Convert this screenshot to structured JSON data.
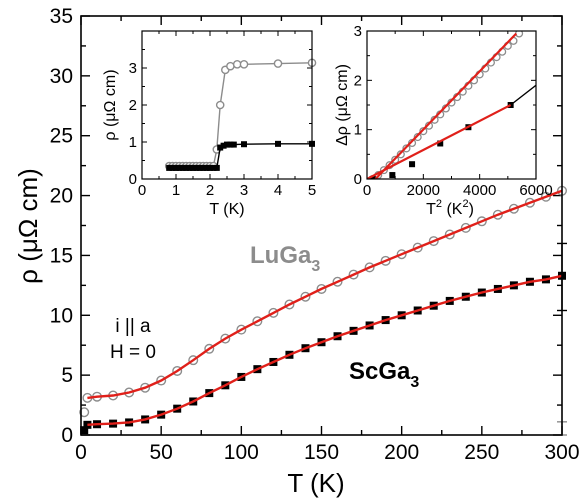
{
  "chart_data": [
    {
      "id": "main",
      "type": "scatter",
      "xlabel": "T (K)",
      "ylabel": "ρ (μΩ cm)",
      "xlim": [
        0,
        300
      ],
      "ylim": [
        0,
        35
      ],
      "xticks": [
        "0",
        "50",
        "100",
        "150",
        "200",
        "250",
        "300"
      ],
      "yticks": [
        "0",
        "5",
        "10",
        "15",
        "20",
        "25",
        "30",
        "35"
      ],
      "annotations": [
        "i || a",
        "H = 0"
      ],
      "series": [
        {
          "name": "LuGa3",
          "label_main": "LuGa",
          "label_sub": "3",
          "marker": "open-circle",
          "color": "#8c8c8c",
          "fit_color": "#e0201a",
          "x": [
            2,
            4,
            10,
            20,
            30,
            40,
            50,
            60,
            70,
            80,
            90,
            100,
            110,
            120,
            130,
            140,
            150,
            160,
            170,
            180,
            190,
            200,
            210,
            220,
            230,
            240,
            250,
            260,
            270,
            280,
            290,
            300
          ],
          "y": [
            1.9,
            3.1,
            3.2,
            3.3,
            3.55,
            3.95,
            4.55,
            5.35,
            6.25,
            7.2,
            8.05,
            8.8,
            9.5,
            10.2,
            10.9,
            11.55,
            12.2,
            12.8,
            13.4,
            14.0,
            14.55,
            15.1,
            15.65,
            16.2,
            16.75,
            17.3,
            17.85,
            18.4,
            18.9,
            19.4,
            19.9,
            20.4
          ],
          "error_bar": {
            "x": 300,
            "low": 0.0,
            "high": 1.1
          }
        },
        {
          "name": "ScGa3",
          "label_main": "ScGa",
          "label_sub": "3",
          "marker": "filled-square",
          "color": "#000000",
          "fit_color": "#e0201a",
          "x": [
            2,
            4,
            10,
            20,
            30,
            40,
            50,
            60,
            70,
            80,
            90,
            100,
            110,
            120,
            130,
            140,
            150,
            160,
            170,
            180,
            190,
            200,
            210,
            220,
            230,
            240,
            250,
            260,
            270,
            280,
            290,
            300
          ],
          "y": [
            0.4,
            0.85,
            0.9,
            0.95,
            1.05,
            1.3,
            1.7,
            2.2,
            2.8,
            3.5,
            4.15,
            4.85,
            5.5,
            6.1,
            6.7,
            7.25,
            7.75,
            8.25,
            8.7,
            9.15,
            9.6,
            10.0,
            10.4,
            10.8,
            11.2,
            11.55,
            11.9,
            12.2,
            12.5,
            12.8,
            13.0,
            13.3
          ],
          "error_bar": {
            "x": 300,
            "low": 10.4,
            "high": 16.0
          }
        }
      ]
    },
    {
      "id": "inset_left",
      "type": "line",
      "xlabel": "T (K)",
      "ylabel": "ρ (μΩ cm)",
      "xlim": [
        0,
        5
      ],
      "ylim": [
        0,
        4
      ],
      "xticks": [
        "0",
        "1",
        "2",
        "3",
        "4",
        "5"
      ],
      "yticks": [
        "0",
        "1",
        "2",
        "3"
      ],
      "series": [
        {
          "name": "LuGa3",
          "marker": "open-circle",
          "color": "#8c8c8c",
          "x": [
            0.8,
            0.9,
            1.0,
            1.1,
            1.2,
            1.3,
            1.4,
            1.5,
            1.6,
            1.7,
            1.8,
            1.9,
            2.0,
            2.1,
            2.2,
            2.3,
            2.45,
            2.6,
            2.8,
            3.0,
            4.0,
            5.0
          ],
          "y": [
            0.35,
            0.35,
            0.35,
            0.35,
            0.35,
            0.35,
            0.35,
            0.35,
            0.35,
            0.35,
            0.35,
            0.35,
            0.35,
            0.35,
            0.8,
            2.0,
            2.95,
            3.05,
            3.1,
            3.1,
            3.12,
            3.14
          ]
        },
        {
          "name": "ScGa3",
          "marker": "filled-square",
          "color": "#000000",
          "x": [
            0.8,
            0.9,
            1.0,
            1.1,
            1.2,
            1.3,
            1.4,
            1.5,
            1.6,
            1.7,
            1.8,
            1.9,
            2.0,
            2.1,
            2.2,
            2.3,
            2.4,
            2.5,
            2.6,
            2.7,
            3.0,
            4.0,
            5.0
          ],
          "y": [
            0.3,
            0.3,
            0.3,
            0.3,
            0.3,
            0.3,
            0.3,
            0.3,
            0.3,
            0.3,
            0.3,
            0.3,
            0.3,
            0.3,
            0.3,
            0.85,
            0.9,
            0.93,
            0.93,
            0.93,
            0.94,
            0.95,
            0.95
          ]
        }
      ]
    },
    {
      "id": "inset_right",
      "type": "scatter",
      "xlabel_main": "T",
      "xlabel_sup": "2",
      "xlabel_unit_main": " (K",
      "xlabel_unit_sup": "2",
      "xlabel_close": ")",
      "ylabel": "Δρ (μΩ cm)",
      "xlim": [
        0,
        6000
      ],
      "ylim": [
        0,
        3
      ],
      "xticks": [
        "0",
        "2000",
        "4000",
        "6000"
      ],
      "yticks": [
        "0",
        "1",
        "2",
        "3"
      ],
      "series": [
        {
          "name": "LuGa3",
          "marker": "open-circle",
          "color": "#8c8c8c",
          "x": [
            200,
            400,
            600,
            800,
            1000,
            1200,
            1400,
            1600,
            1800,
            2000,
            2200,
            2400,
            2600,
            2800,
            3000,
            3200,
            3400,
            3600,
            3800,
            4000,
            4200,
            4400,
            4600,
            4800,
            5000,
            5200,
            5400
          ],
          "y": [
            0.0,
            0.08,
            0.18,
            0.28,
            0.39,
            0.5,
            0.62,
            0.73,
            0.85,
            0.97,
            1.08,
            1.2,
            1.31,
            1.43,
            1.55,
            1.66,
            1.77,
            1.89,
            2.0,
            2.12,
            2.24,
            2.36,
            2.47,
            2.58,
            2.7,
            2.8,
            2.95
          ],
          "fit": {
            "x": [
              300,
              5300
            ],
            "y": [
              0.0,
              2.95
            ],
            "color": "#e0201a"
          }
        },
        {
          "name": "ScGa3",
          "marker": "filled-square",
          "color": "#000000",
          "x": [
            200,
            900,
            1600,
            2600,
            3600,
            5100
          ],
          "y": [
            0.0,
            0.08,
            0.3,
            0.72,
            1.05,
            1.5
          ],
          "line": {
            "x": [
              5100,
              6000
            ],
            "y": [
              1.5,
              1.9
            ],
            "color": "#000000"
          },
          "fit": {
            "x": [
              0,
              5100
            ],
            "y": [
              0.0,
              1.5
            ],
            "color": "#e0201a"
          }
        }
      ]
    }
  ]
}
